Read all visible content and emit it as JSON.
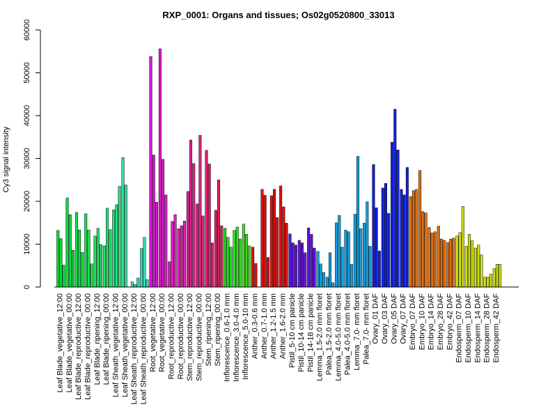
{
  "chart_data": {
    "type": "bar",
    "title": "RXP_0001: Organs and tissues; Os02g0520800_33013",
    "xlabel": "",
    "ylabel": "Cy3 signal intensity",
    "ylim": [
      0,
      60000
    ],
    "yticks": [
      0,
      10000,
      20000,
      30000,
      40000,
      50000,
      60000
    ],
    "grid": false,
    "legend": "none",
    "labeled_categories": [
      "Leaf Blade_vegetative_12:00",
      "Leaf Blade_vegetative_00:00",
      "Leaf Blade_reproductive_12:00",
      "Leaf Blade_reproductive_00:00",
      "Leaf Blade_ripening_12:00",
      "Leaf Blade_ripening_00:00",
      "Leaf Sheath_vegetative_12:00",
      "Leaf Sheath_vegetative_00:00",
      "Leaf Sheath_reproductive_12:00",
      "Leaf Sheath_reproductive_00:00",
      "Root_vegetative_12:00",
      "Root_vegetative_00:00",
      "Root_reproductive_12:00",
      "Root_reproductive_00:00",
      "Stem_reproductive_12:00",
      "Stem_reproductive_00:00",
      "Stem_ripening_12:00",
      "Stem_ripening_00:00",
      "Inflorescence_0.6-1.0 mm",
      "Inflorescence_3.0-4.0 mm",
      "Inflorescence_5.0-10 mm",
      "Anther_0.3-0.6 mm",
      "Anther_0.7-1.0 mm",
      "Anther_1.2-1.5 mm",
      "Anther_1.6-2.0 mm",
      "Pistil_5-10 cm panicle",
      "Pistil_10-14 cm panicle",
      "Pistil_14-18 cm panicle",
      "Lemma_1.5-2.0 mm floret",
      "Palea_1.5-2.0 mm floret",
      "Lemma_4.0-5.0 mm floret",
      "Palea_4.0-5.0 mm floret",
      "Lemma_7.0- mm floret",
      "Palea_7.0- mm floret",
      "Ovary_01 DAF",
      "Ovary_03 DAF",
      "Ovary_05 DAF",
      "Ovary_07 DAF",
      "Embryo_07 DAF",
      "Embryo_10 DAF",
      "Embryo_14 DAF",
      "Embryo_28 DAF",
      "Embryo_42 DAF",
      "Endosperm_07 DAF",
      "Endosperm_10 DAF",
      "Endosperm_14 DAF",
      "Endosperm_28 DAF",
      "Endosperm_42 DAF"
    ],
    "groups": [
      {
        "color": "#00e030",
        "values": [
          13200,
          11300,
          5100
        ]
      },
      {
        "color": "#08e040",
        "values": [
          20800,
          16900,
          8600
        ]
      },
      {
        "color": "#10e048",
        "values": [
          17400,
          13300,
          8100
        ]
      },
      {
        "color": "#18e050",
        "values": [
          17100,
          13300,
          5400
        ]
      },
      {
        "color": "#20e060",
        "values": [
          11900,
          13700,
          9900
        ]
      },
      {
        "color": "#28e070",
        "values": [
          9600,
          18400,
          13400
        ]
      },
      {
        "color": "#28e080",
        "values": [
          18000,
          19200,
          23500
        ]
      },
      {
        "color": "#2ee0a0",
        "values": [
          30200,
          23800,
          0
        ]
      },
      {
        "color": "#30e0b0",
        "values": [
          1200,
          600,
          2100
        ]
      },
      {
        "color": "#30e0c0",
        "values": [
          9000,
          11600,
          1700
        ]
      },
      {
        "color": "#e010e0",
        "values": [
          53800,
          30800,
          19800
        ]
      },
      {
        "color": "#e018d0",
        "values": [
          55600,
          29800,
          21500
        ]
      },
      {
        "color": "#e020c0",
        "values": [
          5900,
          15300,
          16900
        ]
      },
      {
        "color": "#e020b0",
        "values": [
          13600,
          14300,
          15400
        ]
      },
      {
        "color": "#e02090",
        "values": [
          22300,
          34300,
          28800
        ]
      },
      {
        "color": "#e02080",
        "values": [
          19400,
          35400,
          16600
        ]
      },
      {
        "color": "#e02070",
        "values": [
          31900,
          28700,
          10300
        ]
      },
      {
        "color": "#e02060",
        "values": [
          17900,
          25000,
          14300
        ]
      },
      {
        "color": "#20e020",
        "values": [
          13700,
          11600,
          9300
        ]
      },
      {
        "color": "#30e020",
        "values": [
          13200,
          14000,
          11200
        ]
      },
      {
        "color": "#40e020",
        "values": [
          14700,
          12300,
          9600
        ]
      },
      {
        "color": "#e01010",
        "values": [
          9300,
          5500,
          0
        ]
      },
      {
        "color": "#e01010",
        "values": [
          22800,
          21400,
          6900
        ]
      },
      {
        "color": "#e01010",
        "values": [
          21300,
          22800,
          16200
        ]
      },
      {
        "color": "#e01010",
        "values": [
          23600,
          18700,
          14900
        ]
      },
      {
        "color": "#6010e0",
        "values": [
          12400,
          10300,
          9800
        ]
      },
      {
        "color": "#6010e0",
        "values": [
          10900,
          10300,
          8000
        ]
      },
      {
        "color": "#6010e0",
        "values": [
          13800,
          12300,
          9100
        ]
      },
      {
        "color": "#10a0e0",
        "values": [
          8300,
          5400,
          3400
        ]
      },
      {
        "color": "#10a0e0",
        "values": [
          2300,
          8000,
          1000
        ]
      },
      {
        "color": "#10a0e0",
        "values": [
          15000,
          16700,
          9300
        ]
      },
      {
        "color": "#10a0e0",
        "values": [
          13300,
          12900,
          5300
        ]
      },
      {
        "color": "#10a0e0",
        "values": [
          17000,
          30500,
          13600
        ]
      },
      {
        "color": "#10a0e0",
        "values": [
          14900,
          19900,
          9500
        ]
      },
      {
        "color": "#1020e0",
        "values": [
          28600,
          18500,
          8400
        ]
      },
      {
        "color": "#1020e0",
        "values": [
          23100,
          24200,
          17200
        ]
      },
      {
        "color": "#1020e0",
        "values": [
          33800,
          41500,
          32000
        ]
      },
      {
        "color": "#1020e0",
        "values": [
          22800,
          21500,
          27900
        ]
      },
      {
        "color": "#e07010",
        "values": [
          21100,
          22500,
          22800
        ]
      },
      {
        "color": "#e07010",
        "values": [
          27200,
          17600,
          17300
        ]
      },
      {
        "color": "#e07010",
        "values": [
          13900,
          12600,
          12900
        ]
      },
      {
        "color": "#e07010",
        "values": [
          14200,
          11200,
          10900
        ]
      },
      {
        "color": "#e07010",
        "values": [
          10400,
          11200,
          11400
        ]
      },
      {
        "color": "#d0e010",
        "values": [
          11900,
          12700,
          18800
        ]
      },
      {
        "color": "#d0e010",
        "values": [
          9500,
          12300,
          10800
        ]
      },
      {
        "color": "#d0e010",
        "values": [
          9100,
          9800,
          7500
        ]
      },
      {
        "color": "#d0e010",
        "values": [
          2300,
          2300,
          3000
        ]
      },
      {
        "color": "#d0e010",
        "values": [
          4300,
          5300,
          5300
        ]
      }
    ]
  }
}
